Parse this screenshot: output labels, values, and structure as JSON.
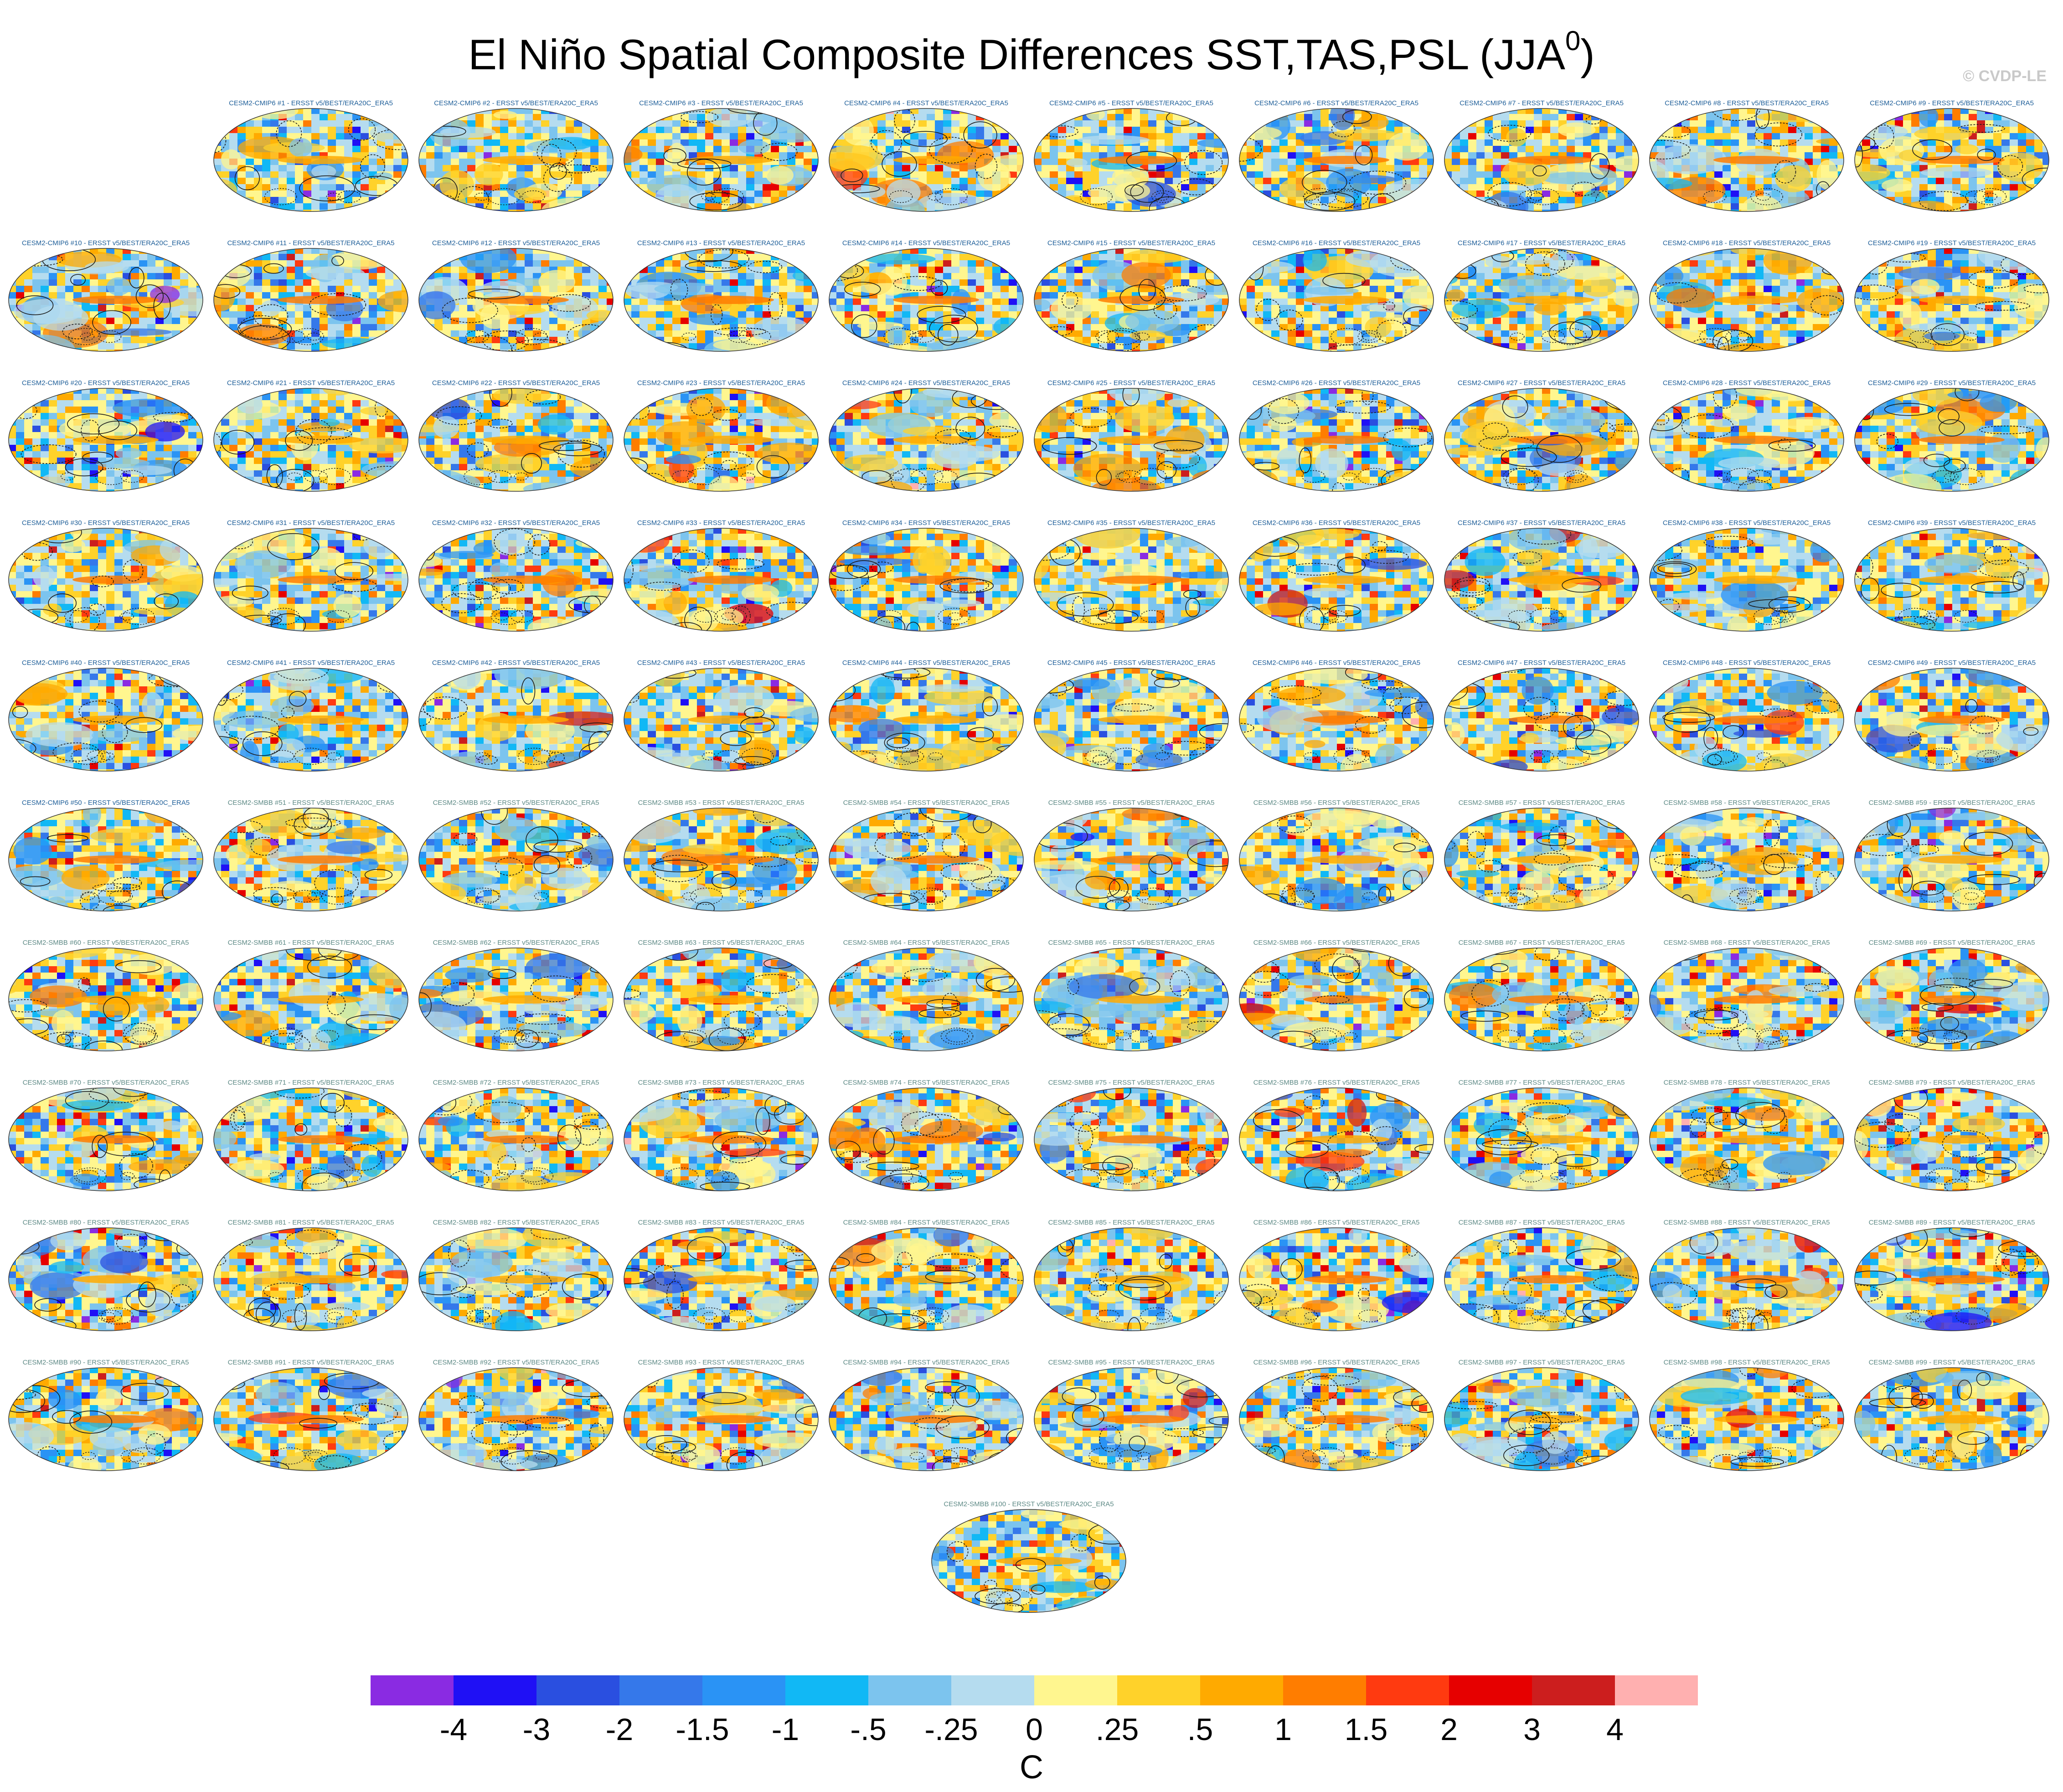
{
  "title": {
    "text": "El Niño Spatial Composite Differences SST,TAS,PSL (JJA",
    "superscript": "0",
    "close": ")"
  },
  "credit": "© CVDP-LE",
  "panel_label_suffix": " - ERSST v5/BEST/ERA20C_ERA5",
  "ensembles": [
    {
      "prefix": "CESM2-CMIP6 #",
      "first": 1,
      "last": 50,
      "label_color": "#1f5f99"
    },
    {
      "prefix": "CESM2-SMBB #",
      "first": 51,
      "last": 100,
      "label_color": "#5e8a86"
    }
  ],
  "chart_data": {
    "type": "heatmap",
    "description_of_fields": "Shading: SST/TAS composite differences; contours: PSL",
    "colorbar": {
      "unit_label": "C",
      "tick_labels": [
        "-4",
        "-3",
        "-2",
        "-1.5",
        "-1",
        "-.5",
        "-.25",
        "0",
        ".25",
        ".5",
        "1",
        "1.5",
        "2",
        "3",
        "4"
      ],
      "colors": [
        "#8a2be2",
        "#1f10f5",
        "#2a4fe0",
        "#3578ea",
        "#2a93f5",
        "#11b8f5",
        "#7cc4ee",
        "#b5dcef",
        "#fff68f",
        "#ffd22a",
        "#ffaa00",
        "#ff7d00",
        "#ff3a10",
        "#e60000",
        "#cc1e1e",
        "#ffb0b0"
      ]
    },
    "panels_count": 100,
    "grid_columns": 10
  }
}
